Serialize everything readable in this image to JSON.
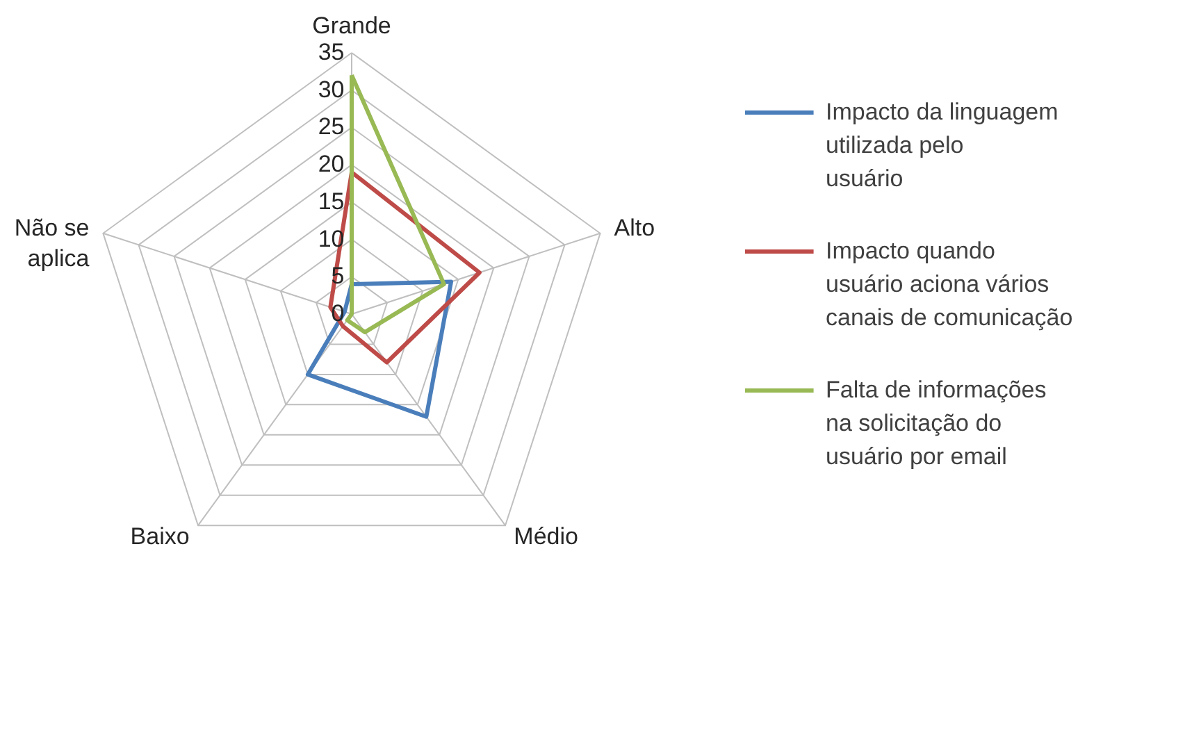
{
  "chart_data": {
    "type": "radar",
    "categories": [
      "Grande",
      "Alto",
      "Médio",
      "Baixo",
      "Não se aplica"
    ],
    "series": [
      {
        "name": "Impacto da linguagem utilizada pelo usuário",
        "color": "#4a7ebb",
        "values": [
          4,
          14,
          17,
          10,
          1
        ]
      },
      {
        "name": "Impacto quando usuário aciona vários canais de comunicação",
        "color": "#be4b48",
        "values": [
          19,
          18,
          8,
          2,
          3
        ]
      },
      {
        "name": "Falta de informações na solicitação do usuário por email",
        "color": "#98b954",
        "values": [
          32,
          13,
          3,
          1,
          0
        ]
      }
    ],
    "ylim": [
      0,
      35
    ],
    "yticks": [
      0,
      5,
      10,
      15,
      20,
      25,
      30,
      35
    ],
    "grid": true,
    "legend": "right",
    "marker": "none"
  }
}
